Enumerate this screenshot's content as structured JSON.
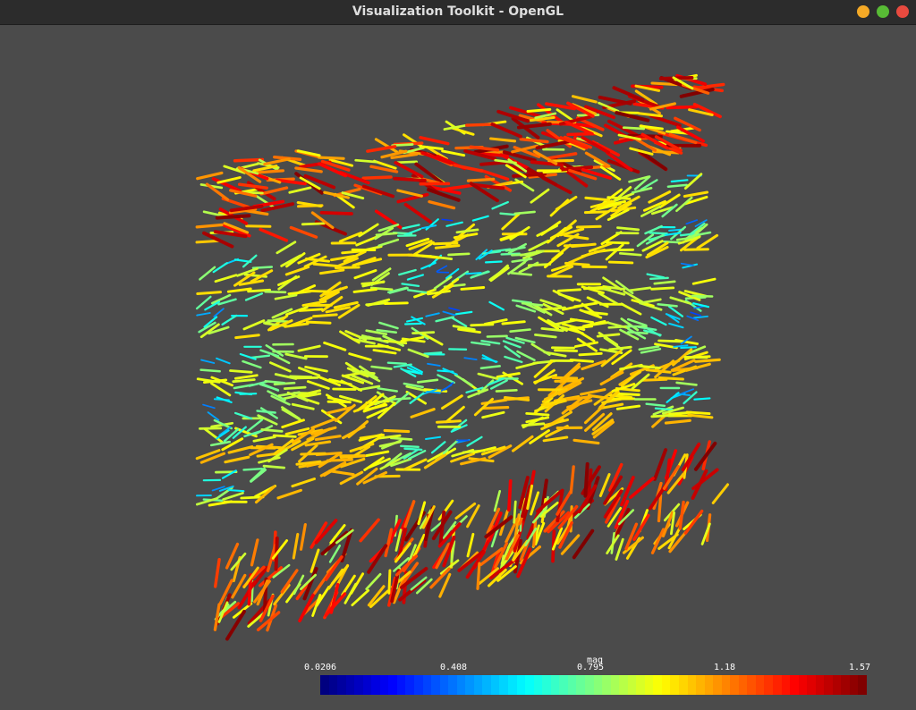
{
  "window": {
    "title": "Visualization Toolkit - OpenGL",
    "buttons": {
      "minimize_color": "#f4a926",
      "maximize_color": "#58bb35",
      "close_color": "#e84a3f"
    }
  },
  "viewport": {
    "background": "#4b4b4b"
  },
  "scalar_bar": {
    "title": "mag",
    "labels": [
      "0.0206",
      "0.408",
      "0.795",
      "1.18",
      "1.57"
    ],
    "range": [
      0.0206,
      1.57
    ],
    "colormap": "jet"
  },
  "glyph_field": {
    "type": "3d-arrow-glyphs",
    "slices": 5,
    "colored_by": "mag"
  }
}
